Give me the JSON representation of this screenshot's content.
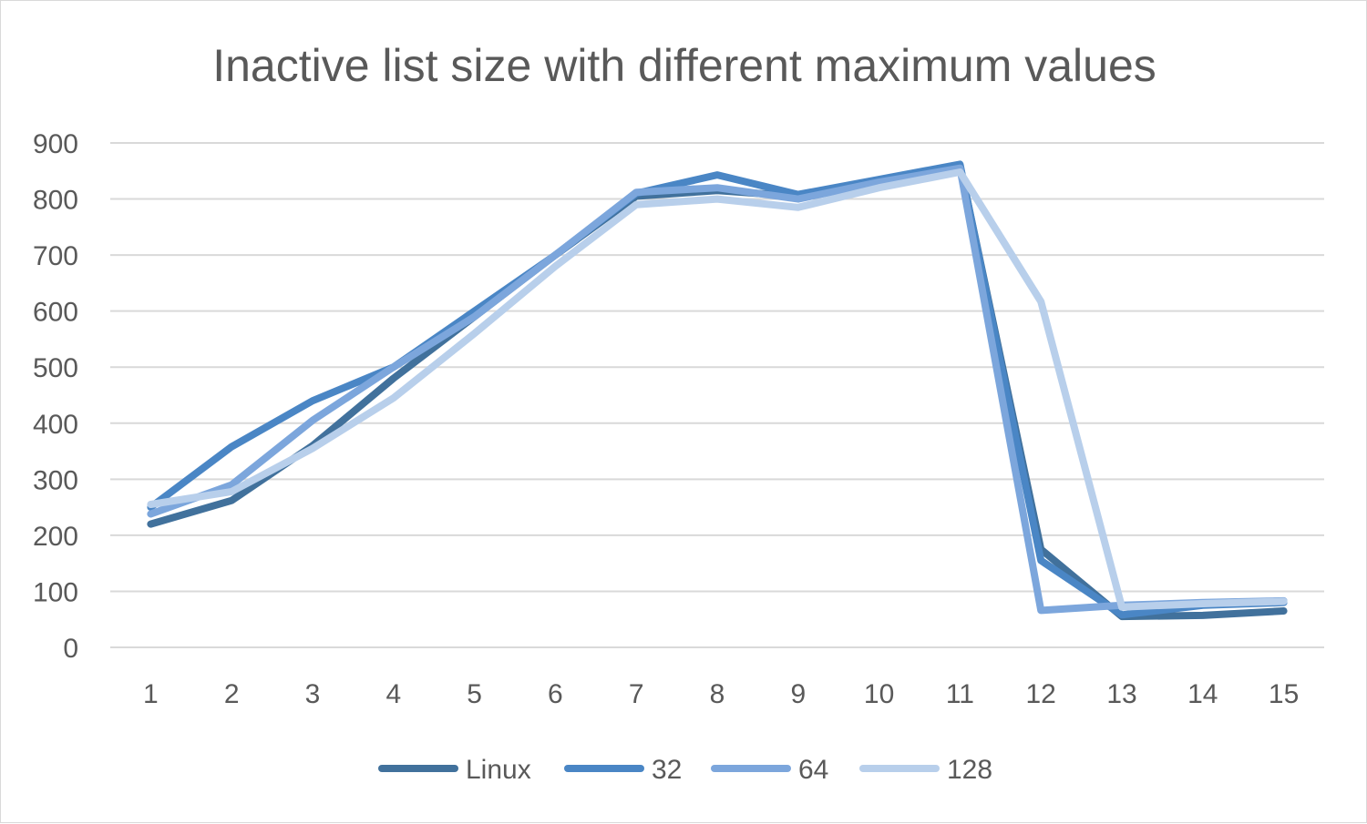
{
  "chart_data": {
    "type": "line",
    "title": "Inactive list size with different maximum values",
    "xlabel": "",
    "ylabel": "",
    "categories": [
      "1",
      "2",
      "3",
      "4",
      "5",
      "6",
      "7",
      "8",
      "9",
      "10",
      "11",
      "12",
      "13",
      "14",
      "15"
    ],
    "ylim": [
      0,
      900
    ],
    "yticks": [
      "0",
      "100",
      "200",
      "300",
      "400",
      "500",
      "600",
      "700",
      "800",
      "900"
    ],
    "grid": true,
    "legend_position": "bottom",
    "series": [
      {
        "name": "Linux",
        "color": "#41719c",
        "values": [
          220,
          262,
          360,
          480,
          590,
          700,
          805,
          815,
          805,
          830,
          860,
          175,
          55,
          57,
          65
        ]
      },
      {
        "name": "32",
        "color": "#4a86c5",
        "values": [
          250,
          358,
          440,
          500,
          600,
          700,
          810,
          843,
          808,
          835,
          862,
          155,
          58,
          75,
          80
        ]
      },
      {
        "name": "64",
        "color": "#7ca6dc",
        "values": [
          238,
          290,
          405,
          500,
          590,
          700,
          812,
          820,
          800,
          830,
          855,
          66,
          75,
          80,
          83
        ]
      },
      {
        "name": "128",
        "color": "#b8cfeb",
        "values": [
          255,
          278,
          355,
          445,
          560,
          680,
          790,
          800,
          785,
          820,
          848,
          617,
          72,
          78,
          82
        ]
      }
    ]
  }
}
